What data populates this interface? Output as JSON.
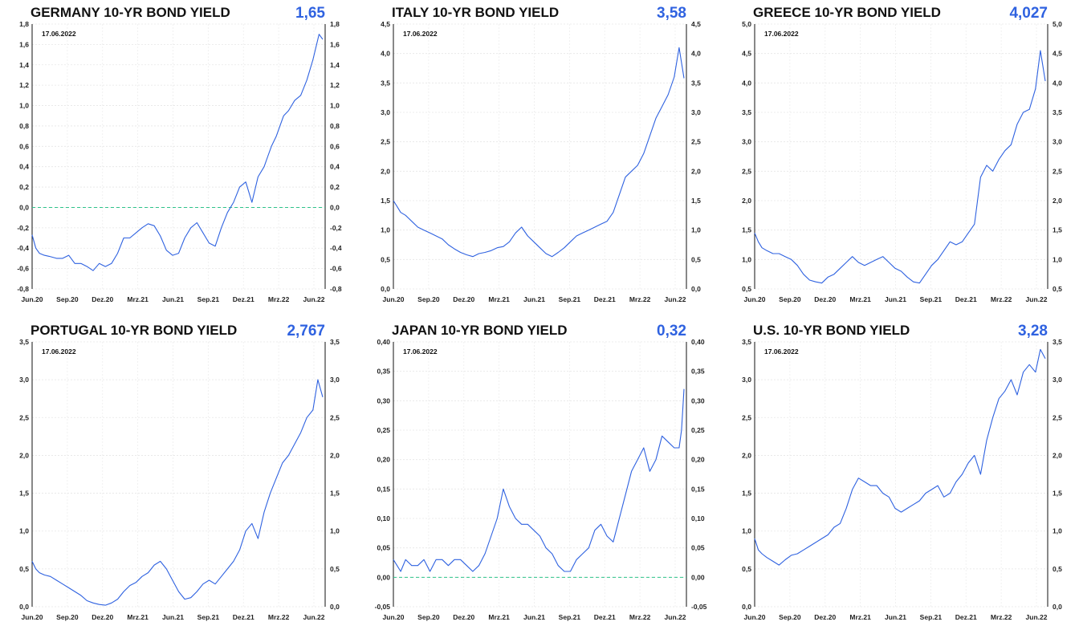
{
  "chart_data": [
    {
      "type": "line",
      "title": "GERMANY 10-YR BOND YIELD",
      "last_value": "1,65",
      "date_label": "17.06.2022",
      "ylim": [
        -0.8,
        1.8
      ],
      "yticks": [
        "-0,8",
        "-0,6",
        "-0,4",
        "-0,2",
        "0,0",
        "0,2",
        "0,4",
        "0,6",
        "0,8",
        "1,0",
        "1,2",
        "1,4",
        "1,6",
        "1,8"
      ],
      "xticks": [
        "Jun.20",
        "Sep.20",
        "Dez.20",
        "Mrz.21",
        "Jun.21",
        "Sep.21",
        "Dez.21",
        "Mrz.22",
        "Jun.22"
      ],
      "zero_line": true,
      "grid": true,
      "line_color": "#2f62e0",
      "series": [
        {
          "x": [
            0,
            0.3,
            0.6,
            1,
            1.4,
            2,
            2.5,
            3,
            3.5,
            4,
            4.5,
            5,
            5.5,
            6,
            6.5,
            7,
            7.5,
            8,
            8.5,
            9,
            9.5,
            10,
            10.5,
            11,
            11.5,
            12,
            12.5,
            13,
            13.5,
            14,
            14.5,
            15,
            15.5,
            16,
            16.5,
            17,
            17.5,
            18,
            18.5,
            19,
            19.3,
            19.6,
            20,
            20.3,
            20.6,
            21,
            21.5,
            22,
            22.5,
            23,
            23.5,
            23.8
          ],
          "values": [
            -0.27,
            -0.4,
            -0.45,
            -0.47,
            -0.48,
            -0.5,
            -0.5,
            -0.47,
            -0.55,
            -0.55,
            -0.58,
            -0.62,
            -0.55,
            -0.58,
            -0.55,
            -0.45,
            -0.3,
            -0.3,
            -0.25,
            -0.2,
            -0.16,
            -0.18,
            -0.28,
            -0.42,
            -0.47,
            -0.45,
            -0.3,
            -0.2,
            -0.15,
            -0.25,
            -0.35,
            -0.38,
            -0.2,
            -0.05,
            0.05,
            0.2,
            0.25,
            0.05,
            0.3,
            0.4,
            0.5,
            0.6,
            0.7,
            0.8,
            0.9,
            0.95,
            1.05,
            1.1,
            1.25,
            1.45,
            1.7,
            1.65
          ]
        }
      ]
    },
    {
      "type": "line",
      "title": "ITALY 10-YR BOND YIELD",
      "last_value": "3,58",
      "date_label": "17.06.2022",
      "ylim": [
        0,
        4.5
      ],
      "yticks": [
        "0,0",
        "0,5",
        "1,0",
        "1,5",
        "2,0",
        "2,5",
        "3,0",
        "3,5",
        "4,0",
        "4,5"
      ],
      "xticks": [
        "Jun.20",
        "Sep.20",
        "Dez.20",
        "Mrz.21",
        "Jun.21",
        "Sep.21",
        "Dez.21",
        "Mrz.22",
        "Jun.22"
      ],
      "zero_line": false,
      "grid": true,
      "line_color": "#2f62e0",
      "series": [
        {
          "x": [
            0,
            0.3,
            0.6,
            1,
            1.5,
            2,
            2.5,
            3,
            3.5,
            4,
            4.5,
            5,
            5.5,
            6,
            6.5,
            7,
            7.5,
            8,
            8.5,
            9,
            9.5,
            10,
            10.5,
            11,
            11.5,
            12,
            12.5,
            13,
            13.5,
            14,
            14.5,
            15,
            15.5,
            16,
            16.5,
            17,
            17.5,
            18,
            18.5,
            19,
            19.5,
            20,
            20.5,
            21,
            21.5,
            22,
            22.5,
            23,
            23.4,
            23.8
          ],
          "values": [
            1.5,
            1.4,
            1.3,
            1.25,
            1.15,
            1.05,
            1.0,
            0.95,
            0.9,
            0.85,
            0.75,
            0.68,
            0.62,
            0.58,
            0.55,
            0.6,
            0.62,
            0.65,
            0.7,
            0.72,
            0.8,
            0.95,
            1.05,
            0.9,
            0.8,
            0.7,
            0.6,
            0.55,
            0.62,
            0.7,
            0.8,
            0.9,
            0.95,
            1.0,
            1.05,
            1.1,
            1.15,
            1.3,
            1.6,
            1.9,
            2.0,
            2.1,
            2.3,
            2.6,
            2.9,
            3.1,
            3.3,
            3.6,
            4.1,
            3.58
          ]
        }
      ]
    },
    {
      "type": "line",
      "title": "GREECE 10-YR BOND YIELD",
      "last_value": "4,027",
      "date_label": "17.06.2022",
      "ylim": [
        0.5,
        5.0
      ],
      "yticks": [
        "0,5",
        "1,0",
        "1,5",
        "2,0",
        "2,5",
        "3,0",
        "3,5",
        "4,0",
        "4,5",
        "5,0"
      ],
      "xticks": [
        "Jun.20",
        "Sep.20",
        "Dez.20",
        "Mrz.21",
        "Jun.21",
        "Sep.21",
        "Dez.21",
        "Mrz.22",
        "Jun.22"
      ],
      "zero_line": false,
      "grid": true,
      "line_color": "#2f62e0",
      "series": [
        {
          "x": [
            0,
            0.3,
            0.6,
            1,
            1.5,
            2,
            2.5,
            3,
            3.5,
            4,
            4.5,
            5,
            5.5,
            6,
            6.5,
            7,
            7.5,
            8,
            8.5,
            9,
            9.5,
            10,
            10.5,
            11,
            11.5,
            12,
            12.5,
            13,
            13.5,
            14,
            14.5,
            15,
            15.5,
            16,
            16.5,
            17,
            17.5,
            18,
            18.5,
            19,
            19.5,
            20,
            20.5,
            21,
            21.5,
            22,
            22.5,
            23,
            23.4,
            23.8
          ],
          "values": [
            1.45,
            1.3,
            1.2,
            1.15,
            1.1,
            1.1,
            1.05,
            1.0,
            0.9,
            0.75,
            0.65,
            0.62,
            0.6,
            0.7,
            0.75,
            0.85,
            0.95,
            1.05,
            0.95,
            0.9,
            0.95,
            1.0,
            1.05,
            0.95,
            0.85,
            0.8,
            0.7,
            0.62,
            0.6,
            0.75,
            0.9,
            1.0,
            1.15,
            1.3,
            1.25,
            1.3,
            1.45,
            1.6,
            2.4,
            2.6,
            2.5,
            2.7,
            2.85,
            2.95,
            3.3,
            3.5,
            3.55,
            3.9,
            4.55,
            4.03
          ]
        }
      ]
    },
    {
      "type": "line",
      "title": "PORTUGAL 10-YR BOND YIELD",
      "last_value": "2,767",
      "date_label": "17.06.2022",
      "ylim": [
        0,
        3.5
      ],
      "yticks": [
        "0,0",
        "0,5",
        "1,0",
        "1,5",
        "2,0",
        "2,5",
        "3,0",
        "3,5"
      ],
      "xticks": [
        "Jun.20",
        "Sep.20",
        "Dez.20",
        "Mrz.21",
        "Jun.21",
        "Sep.21",
        "Dez.21",
        "Mrz.22",
        "Jun.22"
      ],
      "zero_line": false,
      "grid": true,
      "line_color": "#2f62e0",
      "series": [
        {
          "x": [
            0,
            0.3,
            0.6,
            1,
            1.5,
            2,
            2.5,
            3,
            3.5,
            4,
            4.5,
            5,
            5.5,
            6,
            6.5,
            7,
            7.5,
            8,
            8.5,
            9,
            9.5,
            10,
            10.5,
            11,
            11.5,
            12,
            12.5,
            13,
            13.5,
            14,
            14.5,
            15,
            15.5,
            16,
            16.5,
            17,
            17.5,
            18,
            18.5,
            19,
            19.5,
            20,
            20.5,
            21,
            21.5,
            22,
            22.5,
            23,
            23.4,
            23.8
          ],
          "values": [
            0.6,
            0.5,
            0.45,
            0.42,
            0.4,
            0.35,
            0.3,
            0.25,
            0.2,
            0.15,
            0.08,
            0.05,
            0.03,
            0.02,
            0.05,
            0.1,
            0.2,
            0.28,
            0.32,
            0.4,
            0.45,
            0.55,
            0.6,
            0.5,
            0.35,
            0.2,
            0.1,
            0.12,
            0.2,
            0.3,
            0.35,
            0.3,
            0.4,
            0.5,
            0.6,
            0.75,
            1.0,
            1.1,
            0.9,
            1.25,
            1.5,
            1.7,
            1.9,
            2.0,
            2.15,
            2.3,
            2.5,
            2.6,
            3.0,
            2.77
          ]
        }
      ]
    },
    {
      "type": "line",
      "title": "JAPAN 10-YR BOND YIELD",
      "last_value": "0,32",
      "date_label": "17.06.2022",
      "ylim": [
        -0.05,
        0.4
      ],
      "yticks": [
        "-0,05",
        "0,00",
        "0,05",
        "0,10",
        "0,15",
        "0,20",
        "0,25",
        "0,30",
        "0,35",
        "0,40"
      ],
      "xticks": [
        "Jun.20",
        "Sep.20",
        "Dez.20",
        "Mrz.21",
        "Jun.21",
        "Sep.21",
        "Dez.21",
        "Mrz.22",
        "Jun.22"
      ],
      "zero_line": true,
      "grid": true,
      "line_color": "#2f62e0",
      "series": [
        {
          "x": [
            0,
            0.3,
            0.6,
            1,
            1.5,
            2,
            2.5,
            3,
            3.5,
            4,
            4.5,
            5,
            5.5,
            6,
            6.5,
            7,
            7.5,
            8,
            8.5,
            9,
            9.5,
            10,
            10.5,
            11,
            11.5,
            12,
            12.5,
            13,
            13.5,
            14,
            14.5,
            15,
            15.5,
            16,
            16.5,
            17,
            17.5,
            18,
            18.5,
            19,
            19.5,
            20,
            20.5,
            21,
            21.5,
            22,
            22.5,
            23,
            23.4,
            23.6,
            23.8
          ],
          "values": [
            0.03,
            0.02,
            0.01,
            0.03,
            0.02,
            0.02,
            0.03,
            0.01,
            0.03,
            0.03,
            0.02,
            0.03,
            0.03,
            0.02,
            0.01,
            0.02,
            0.04,
            0.07,
            0.1,
            0.15,
            0.12,
            0.1,
            0.09,
            0.09,
            0.08,
            0.07,
            0.05,
            0.04,
            0.02,
            0.01,
            0.01,
            0.03,
            0.04,
            0.05,
            0.08,
            0.09,
            0.07,
            0.06,
            0.1,
            0.14,
            0.18,
            0.2,
            0.22,
            0.18,
            0.2,
            0.24,
            0.23,
            0.22,
            0.22,
            0.25,
            0.32
          ]
        }
      ]
    },
    {
      "type": "line",
      "title": "U.S. 10-YR BOND YIELD",
      "last_value": "3,28",
      "date_label": "17.06.2022",
      "ylim": [
        0,
        3.5
      ],
      "yticks": [
        "0,0",
        "0,5",
        "1,0",
        "1,5",
        "2,0",
        "2,5",
        "3,0",
        "3,5"
      ],
      "xticks": [
        "Jun.20",
        "Sep.20",
        "Dez.20",
        "Mrz.21",
        "Jun.21",
        "Sep.21",
        "Dez.21",
        "Mrz.22",
        "Jun.22"
      ],
      "zero_line": false,
      "grid": true,
      "line_color": "#2f62e0",
      "series": [
        {
          "x": [
            0,
            0.3,
            0.6,
            1,
            1.5,
            2,
            2.5,
            3,
            3.5,
            4,
            4.5,
            5,
            5.5,
            6,
            6.5,
            7,
            7.5,
            8,
            8.5,
            9,
            9.5,
            10,
            10.5,
            11,
            11.5,
            12,
            12.5,
            13,
            13.5,
            14,
            14.5,
            15,
            15.5,
            16,
            16.5,
            17,
            17.5,
            18,
            18.5,
            19,
            19.5,
            20,
            20.5,
            21,
            21.5,
            22,
            22.5,
            23,
            23.4,
            23.8
          ],
          "values": [
            0.9,
            0.75,
            0.7,
            0.65,
            0.6,
            0.55,
            0.62,
            0.68,
            0.7,
            0.75,
            0.8,
            0.85,
            0.9,
            0.95,
            1.05,
            1.1,
            1.3,
            1.55,
            1.7,
            1.65,
            1.6,
            1.6,
            1.5,
            1.45,
            1.3,
            1.25,
            1.3,
            1.35,
            1.4,
            1.5,
            1.55,
            1.6,
            1.45,
            1.5,
            1.65,
            1.75,
            1.9,
            2.0,
            1.75,
            2.2,
            2.5,
            2.75,
            2.85,
            3.0,
            2.8,
            3.1,
            3.2,
            3.1,
            3.4,
            3.28
          ]
        }
      ]
    }
  ]
}
